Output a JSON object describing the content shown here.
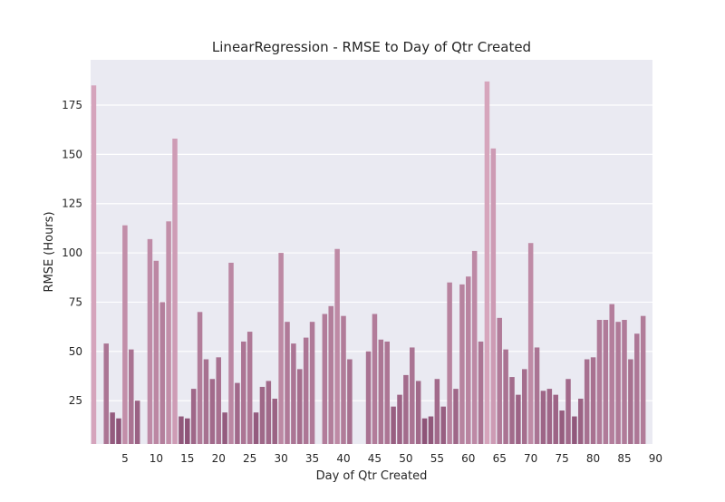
{
  "chart_data": {
    "type": "bar",
    "title": "LinearRegression - RMSE to Day of Qtr Created",
    "xlabel": "Day of Qtr Created",
    "ylabel": "RMSE (Hours)",
    "xlim": [
      -0.5,
      89.5
    ],
    "ylim": [
      3,
      198
    ],
    "grid": true,
    "x_ticks": [
      5,
      10,
      15,
      20,
      25,
      30,
      35,
      40,
      45,
      50,
      55,
      60,
      65,
      70,
      75,
      80,
      85,
      90
    ],
    "y_ticks": [
      25,
      50,
      75,
      100,
      125,
      150,
      175
    ],
    "x_tick_labels": [
      "5",
      "10",
      "15",
      "20",
      "25",
      "30",
      "35",
      "40",
      "45",
      "50",
      "55",
      "60",
      "65",
      "70",
      "75",
      "80",
      "85",
      "90"
    ],
    "y_tick_labels": [
      "25",
      "50",
      "75",
      "100",
      "125",
      "150",
      "175"
    ],
    "palette": {
      "background": "#eaeaf2",
      "grid": "#ffffff",
      "bar_light": "#d6a5bc",
      "bar_dark": "#8e5478"
    },
    "x": [
      0,
      1,
      2,
      3,
      4,
      5,
      6,
      7,
      8,
      9,
      10,
      11,
      12,
      13,
      14,
      15,
      16,
      17,
      18,
      19,
      20,
      21,
      22,
      23,
      24,
      25,
      26,
      27,
      28,
      29,
      30,
      31,
      32,
      33,
      34,
      35,
      36,
      37,
      38,
      39,
      40,
      41,
      42,
      43,
      44,
      45,
      46,
      47,
      48,
      49,
      50,
      51,
      52,
      53,
      54,
      55,
      56,
      57,
      58,
      59,
      60,
      61,
      62,
      63,
      64,
      65,
      66,
      67,
      68,
      69,
      70,
      71,
      72,
      73,
      74,
      75,
      76,
      77,
      78,
      79,
      80,
      81,
      82,
      83,
      84,
      85,
      86,
      87,
      88,
      89
    ],
    "values": [
      185,
      null,
      54,
      19,
      16,
      114,
      51,
      25,
      null,
      107,
      96,
      75,
      116,
      158,
      17,
      16,
      31,
      70,
      46,
      36,
      47,
      19,
      95,
      34,
      55,
      60,
      19,
      32,
      35,
      26,
      100,
      65,
      54,
      41,
      57,
      65,
      null,
      69,
      73,
      102,
      68,
      46,
      null,
      null,
      50,
      69,
      56,
      55,
      22,
      28,
      38,
      52,
      35,
      16,
      17,
      36,
      22,
      85,
      31,
      84,
      88,
      101,
      55,
      187,
      153,
      67,
      51,
      37,
      28,
      41,
      105,
      52,
      30,
      31,
      28,
      20,
      36,
      17,
      26,
      46,
      47,
      66,
      66,
      74,
      65,
      66,
      46,
      59,
      68,
      null
    ]
  }
}
